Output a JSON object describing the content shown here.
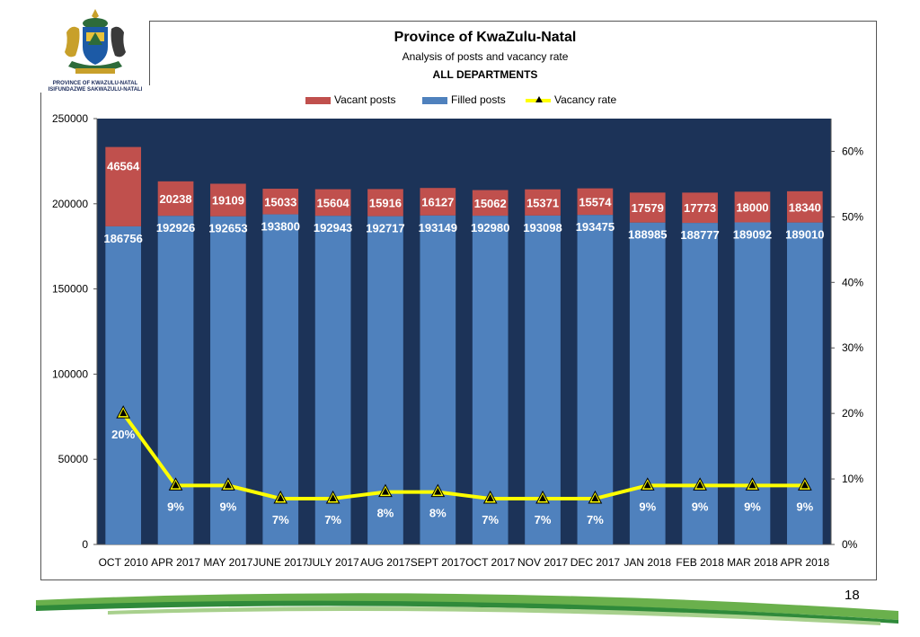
{
  "logo": {
    "line1": "PROVINCE OF KWAZULU-NATAL",
    "line2": "ISIFUNDAZWE SAKWAZULU-NATALI"
  },
  "page_number": "18",
  "colors": {
    "plot_bg": "#1c3358",
    "filled": "#4f81bd",
    "vacant": "#c0504d",
    "vacancy_line": "#ffff00",
    "marker": "#000000",
    "label_text": "#ffffff",
    "footer_green": "#6ab04c"
  },
  "chart_data": {
    "type": "bar",
    "stacked": true,
    "title": "Province of KwaZulu-Natal",
    "subtitle": "Analysis of posts and vacancy rate",
    "subtitle2": "ALL DEPARTMENTS",
    "categories": [
      "OCT 2010",
      "APR 2017",
      "MAY 2017",
      "JUNE 2017",
      "JULY 2017",
      "AUG 2017",
      "SEPT 2017",
      "OCT 2017",
      "NOV 2017",
      "DEC 2017",
      "JAN 2018",
      "FEB 2018",
      "MAR 2018",
      "APR 2018"
    ],
    "series": [
      {
        "name": "Filled posts",
        "values": [
          186756,
          192926,
          192653,
          193800,
          192943,
          192717,
          193149,
          192980,
          193098,
          193475,
          188985,
          188777,
          189092,
          189010
        ]
      },
      {
        "name": "Vacant posts",
        "values": [
          46564,
          20238,
          19109,
          15033,
          15604,
          15916,
          16127,
          15062,
          15371,
          15574,
          17579,
          17773,
          18000,
          18340
        ]
      },
      {
        "name": "Vacancy rate",
        "axis": "right",
        "values": [
          20,
          9,
          9,
          7,
          7,
          8,
          8,
          7,
          7,
          7,
          9,
          9,
          9,
          9
        ],
        "labels": [
          "20%",
          "9%",
          "9%",
          "7%",
          "7%",
          "8%",
          "8%",
          "7%",
          "7%",
          "7%",
          "9%",
          "9%",
          "9%",
          "9%"
        ]
      }
    ],
    "legend_order": [
      "Vacant posts",
      "Filled posts",
      "Vacancy rate"
    ],
    "legend_position": "top",
    "y_left": {
      "ylim": [
        0,
        250000
      ],
      "ticks": [
        "0",
        "50000",
        "100000",
        "150000",
        "200000",
        "250000"
      ]
    },
    "y_right": {
      "ylim": [
        0,
        65
      ],
      "ticks": [
        "0%",
        "10%",
        "20%",
        "30%",
        "40%",
        "50%",
        "60%"
      ]
    },
    "grid": false
  }
}
